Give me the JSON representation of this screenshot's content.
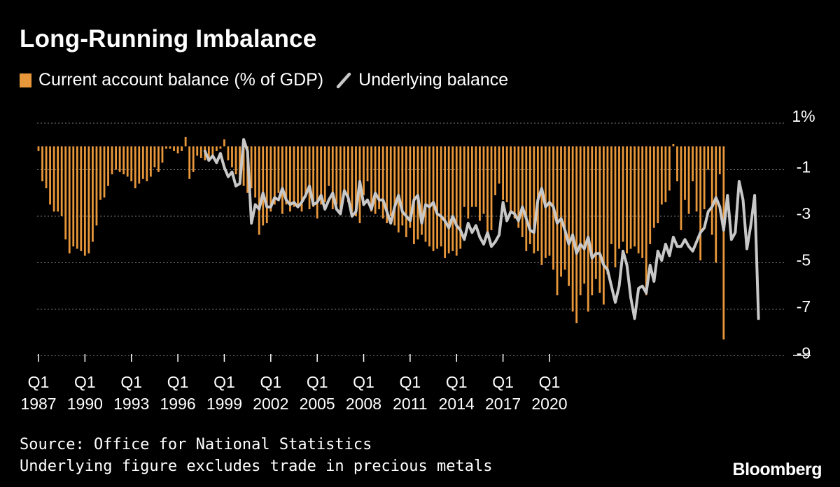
{
  "title": "Long-Running Imbalance",
  "legend": {
    "bar_label": "Current account balance (% of GDP)",
    "line_label": "Underlying balance"
  },
  "source_line1": "Source: Office for National Statistics",
  "source_line2": "Underlying figure excludes trade in precious metals",
  "brand": "Bloomberg",
  "colors": {
    "bar": "#e8973a",
    "line": "#c8c8c8",
    "grid": "#7a7a7a",
    "background": "#000000"
  },
  "chart_data": {
    "type": "bar+line",
    "title": "Long-Running Imbalance",
    "ylim": [
      -10,
      1
    ],
    "y_ticks": [
      1,
      -1,
      -3,
      -5,
      -7,
      -9
    ],
    "y_tick_labels": [
      "1%",
      "-1",
      "-3",
      "-5",
      "-7",
      "-9"
    ],
    "x_tick_labels": [
      {
        "period": "1987-Q1",
        "line1": "Q1",
        "line2": "1987"
      },
      {
        "period": "1990-Q1",
        "line1": "Q1",
        "line2": "1990"
      },
      {
        "period": "1993-Q1",
        "line1": "Q1",
        "line2": "1993"
      },
      {
        "period": "1996-Q1",
        "line1": "Q1",
        "line2": "1996"
      },
      {
        "period": "1999-Q1",
        "line1": "Q1",
        "line2": "1999"
      },
      {
        "period": "2002-Q1",
        "line1": "Q1",
        "line2": "2002"
      },
      {
        "period": "2005-Q1",
        "line1": "Q1",
        "line2": "2005"
      },
      {
        "period": "2008-Q1",
        "line1": "Q1",
        "line2": "2008"
      },
      {
        "period": "2011-Q1",
        "line1": "Q1",
        "line2": "2011"
      },
      {
        "period": "2014-Q1",
        "line1": "Q1",
        "line2": "2014"
      },
      {
        "period": "2017-Q1",
        "line1": "Q1",
        "line2": "2017"
      },
      {
        "period": "2020-Q1",
        "line1": "Q1",
        "line2": "2020"
      }
    ],
    "bar_series": {
      "name": "Current account balance (% of GDP)",
      "start": "1987-Q1",
      "values": [
        -0.2,
        -1.5,
        -1.8,
        -2.5,
        -2.8,
        -2.8,
        -3.0,
        -4.0,
        -4.6,
        -4.3,
        -4.4,
        -4.5,
        -4.7,
        -4.6,
        -4.1,
        -3.4,
        -2.3,
        -2.2,
        -1.7,
        -1.2,
        -1.0,
        -1.1,
        -1.2,
        -1.3,
        -1.5,
        -1.8,
        -1.6,
        -1.4,
        -1.5,
        -1.3,
        -0.9,
        -1.1,
        -0.7,
        -0.1,
        -0.1,
        -0.2,
        -0.3,
        -0.2,
        0.4,
        -1.4,
        -1.1,
        -0.4,
        -0.5,
        -0.6,
        -0.6,
        -0.4,
        -0.2,
        -0.1,
        0.3,
        -0.6,
        -0.9,
        -1.2,
        -1.5,
        -1.7,
        -2.0,
        -1.8,
        -2.2,
        -3.8,
        -3.4,
        -3.3,
        -2.8,
        -2.5,
        -2.0,
        -2.9,
        -2.5,
        -2.8,
        -2.6,
        -2.6,
        -2.8,
        -2.2,
        -2.7,
        -2.6,
        -3.1,
        -2.5,
        -2.4,
        -1.7,
        -2.7,
        -2.5,
        -2.9,
        -1.9,
        -2.4,
        -2.8,
        -3.0,
        -3.3,
        -2.1,
        -1.5,
        -2.8,
        -2.9,
        -2.7,
        -3.1,
        -3.3,
        -3.0,
        -3.4,
        -3.7,
        -3.4,
        -3.9,
        -3.5,
        -4.2,
        -4.0,
        -3.8,
        -4.1,
        -4.3,
        -4.5,
        -4.4,
        -4.3,
        -4.8,
        -4.6,
        -4.5,
        -4.7,
        -4.4,
        -2.6,
        -3.1,
        -2.6,
        -2.6,
        -3.2,
        -2.9,
        -3.7,
        -3.6,
        -2.1,
        -1.6,
        -2.3,
        -2.4,
        -2.9,
        -3.1,
        -3.5,
        -3.9,
        -4.5,
        -4.2,
        -4.6,
        -4.5,
        -5.1,
        -4.8,
        -4.7,
        -5.3,
        -6.4,
        -5.6,
        -5.3,
        -6.0,
        -7.1,
        -7.6,
        -6.4,
        -5.9,
        -7.1,
        -6.4,
        -5.7,
        -6.3,
        -6.8,
        -5.5,
        -4.2,
        -5.2,
        -4.4,
        -4.1,
        -4.6,
        -4.4,
        -4.3,
        -4.6,
        -4.8,
        -6.4,
        -4.2,
        -3.5,
        -3.3,
        -2.5,
        -2.4,
        -1.9,
        0.1,
        -1.5,
        -3.6,
        -2.3,
        -2.9,
        -1.5,
        -2.8,
        -4.9,
        -2.7,
        -1.0,
        -3.8,
        -5.0,
        -1.2,
        -8.3
      ]
    },
    "line_series": {
      "name": "Underlying balance",
      "start": "1997-Q4",
      "values": [
        -0.2,
        -0.6,
        -0.4,
        -0.7,
        -0.3,
        -0.9,
        -1.3,
        -1.1,
        -1.7,
        -1.6,
        0.3,
        -0.2,
        -3.3,
        -2.5,
        -2.7,
        -2.0,
        -2.6,
        -2.6,
        -2.2,
        -2.3,
        -1.8,
        -2.3,
        -2.5,
        -2.4,
        -2.6,
        -2.4,
        -2.1,
        -1.7,
        -2.5,
        -2.4,
        -2.1,
        -2.7,
        -2.3,
        -2.0,
        -2.7,
        -2.9,
        -1.9,
        -2.2,
        -3.0,
        -2.8,
        -1.5,
        -2.5,
        -2.3,
        -2.7,
        -2.0,
        -2.3,
        -2.3,
        -2.8,
        -3.3,
        -2.6,
        -2.1,
        -2.8,
        -3.0,
        -3.2,
        -2.3,
        -2.1,
        -3.3,
        -2.5,
        -2.6,
        -2.4,
        -2.9,
        -3.0,
        -3.2,
        -3.5,
        -3.0,
        -3.4,
        -3.6,
        -4.0,
        -3.3,
        -3.7,
        -3.4,
        -3.9,
        -4.2,
        -3.7,
        -4.3,
        -4.1,
        -3.8,
        -2.4,
        -3.2,
        -2.8,
        -2.9,
        -3.2,
        -2.6,
        -3.1,
        -3.6,
        -3.7,
        -2.3,
        -1.8,
        -2.6,
        -2.4,
        -2.6,
        -3.3,
        -3.1,
        -3.6,
        -4.2,
        -3.8,
        -4.6,
        -4.2,
        -4.4,
        -3.9,
        -4.8,
        -4.6,
        -4.6,
        -5.1,
        -5.3,
        -6.0,
        -6.7,
        -6.0,
        -4.5,
        -5.1,
        -6.5,
        -7.4,
        -6.1,
        -6.0,
        -6.3,
        -5.1,
        -5.8,
        -4.5,
        -4.9,
        -4.2,
        -4.7,
        -3.9,
        -4.3,
        -4.3,
        -4.0,
        -4.3,
        -4.5,
        -4.1,
        -3.7,
        -3.5,
        -2.8,
        -2.6,
        -2.2,
        -2.6,
        -3.6,
        -2.1,
        -4.0,
        -3.7,
        -1.5,
        -2.3,
        -4.4,
        -3.4,
        -2.1,
        -7.4
      ]
    }
  }
}
